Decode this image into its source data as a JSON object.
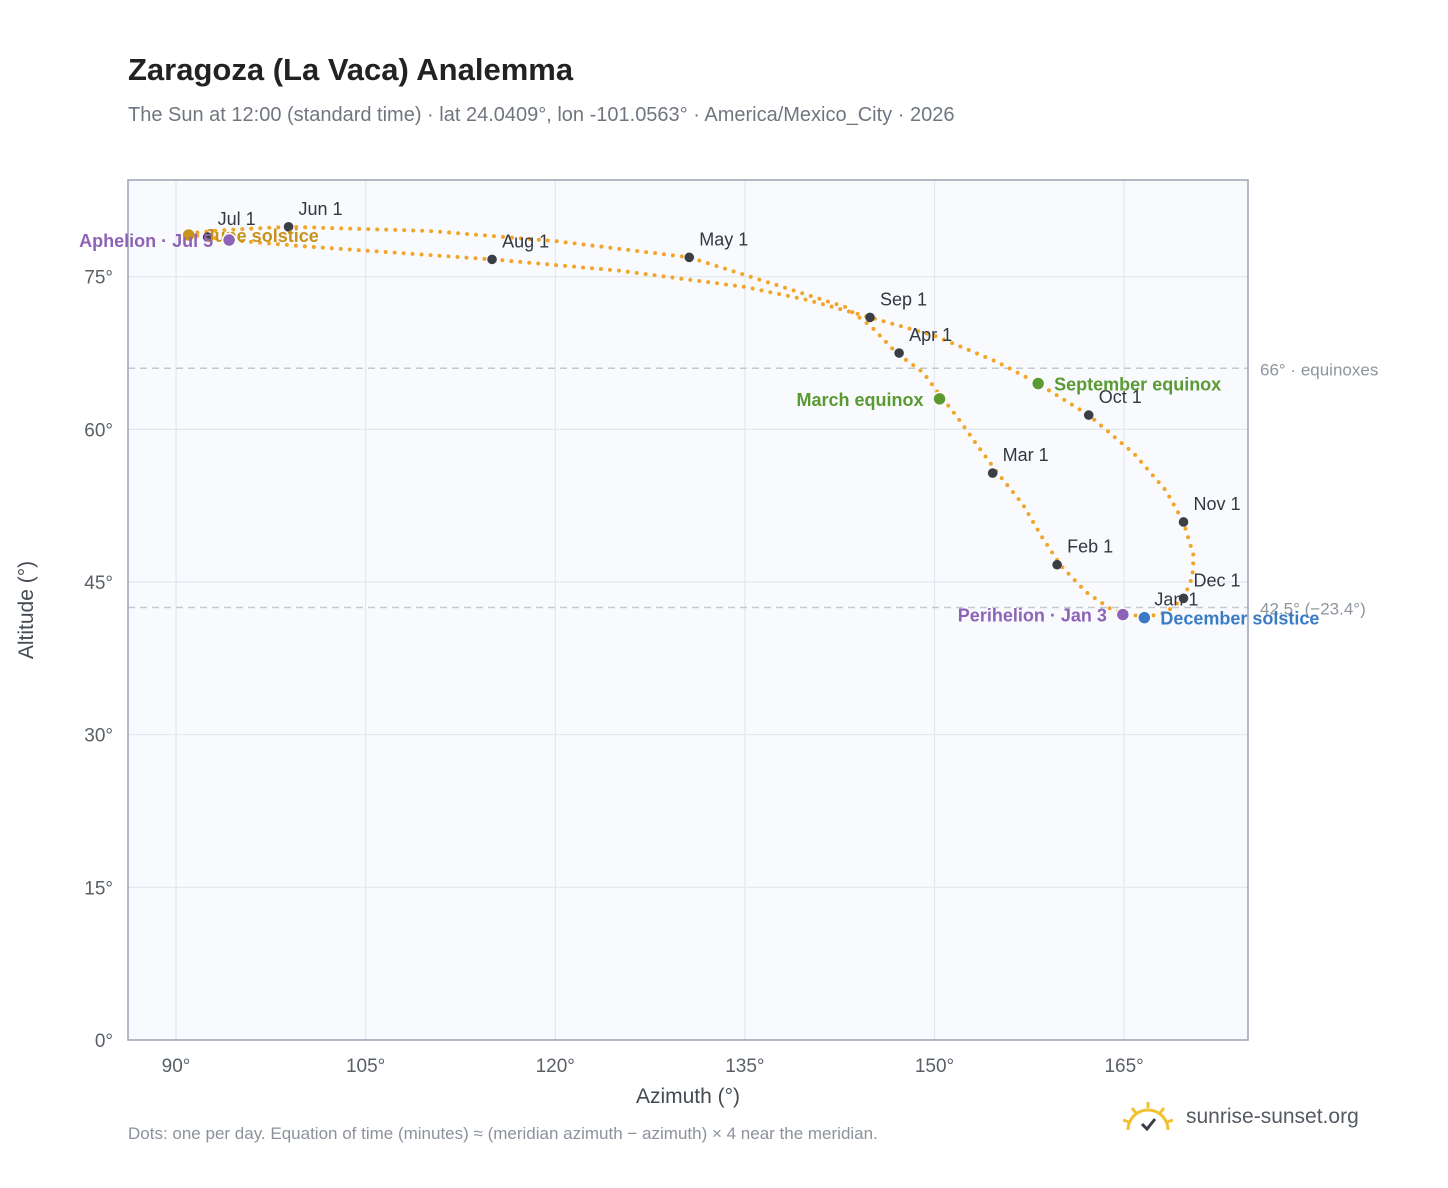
{
  "header": {
    "title": "Zaragoza (La Vaca) Analemma",
    "subtitle": "The Sun at 12:00 (standard time) · lat 24.0409°, lon -101.0563° · America/Mexico_City · 2026"
  },
  "footer": {
    "note": "Dots: one per day. Equation of time (minutes) ≈ (meridian azimuth − azimuth) × 4 near the meridian.",
    "brand": "sunrise-sunset.org",
    "brand_icon": "sun-logo-icon"
  },
  "colors": {
    "path": "#f2a52a",
    "month_dot": "#3a3f47",
    "equinox": "#5a9a32",
    "december_solstice": "#3a7cc4",
    "june_solstice": "#c9921a",
    "apsis": "#8c63b5",
    "plot_bg": "#f8fafd",
    "grid": "#e3e8ee",
    "frame": "#9aa3b2",
    "reference_line": "#c4c8cf"
  },
  "chart_data": {
    "type": "scatter",
    "xlabel": "Azimuth (°)",
    "ylabel": "Altitude (°)",
    "xlim": [
      86.2,
      174.8
    ],
    "ylim": [
      0,
      84.5
    ],
    "x_ticks": [
      90,
      105,
      120,
      135,
      150,
      165
    ],
    "x_tick_labels": [
      "90°",
      "105°",
      "120°",
      "135°",
      "150°",
      "165°"
    ],
    "y_ticks": [
      0,
      15,
      30,
      45,
      60,
      75
    ],
    "y_tick_labels": [
      "0°",
      "15°",
      "30°",
      "45°",
      "60°",
      "75°"
    ],
    "grid": true,
    "path_points_az_alt": [
      [
        166.6,
        41.5
      ],
      [
        164.0,
        42.3
      ],
      [
        162.0,
        44.0
      ],
      [
        160.0,
        46.6
      ],
      [
        158.5,
        49.4
      ],
      [
        157.0,
        52.6
      ],
      [
        155.0,
        55.7
      ],
      [
        153.4,
        58.4
      ],
      [
        151.8,
        61.2
      ],
      [
        150.4,
        63.4
      ],
      [
        149.1,
        65.6
      ],
      [
        147.0,
        67.5
      ],
      [
        145.0,
        70.1
      ],
      [
        143.0,
        72.0
      ],
      [
        130.6,
        76.9
      ],
      [
        120.0,
        78.5
      ],
      [
        110.0,
        79.5
      ],
      [
        98.9,
        79.9
      ],
      [
        94.0,
        79.6
      ],
      [
        91.3,
        79.3
      ],
      [
        91.0,
        79.1
      ],
      [
        92.5,
        78.9
      ],
      [
        94.2,
        78.6
      ],
      [
        100.0,
        78.0
      ],
      [
        115.0,
        76.7
      ],
      [
        125.0,
        75.6
      ],
      [
        135.0,
        74.0
      ],
      [
        140.0,
        72.7
      ],
      [
        144.9,
        71.0
      ],
      [
        150.0,
        69.2
      ],
      [
        155.0,
        66.6
      ],
      [
        158.2,
        64.5
      ],
      [
        162.2,
        61.4
      ],
      [
        165.8,
        57.6
      ],
      [
        168.3,
        54.0
      ],
      [
        169.7,
        50.9
      ],
      [
        170.5,
        47.6
      ],
      [
        170.4,
        45.5
      ],
      [
        169.7,
        43.4
      ],
      [
        168.3,
        42.0
      ],
      [
        166.6,
        41.5
      ]
    ],
    "month_markers": [
      {
        "label": "Jan 1",
        "az": 166.6,
        "alt": 41.5
      },
      {
        "label": "Feb 1",
        "az": 159.7,
        "alt": 46.7
      },
      {
        "label": "Mar 1",
        "az": 154.6,
        "alt": 55.7
      },
      {
        "label": "Apr 1",
        "az": 147.2,
        "alt": 67.5
      },
      {
        "label": "May 1",
        "az": 130.6,
        "alt": 76.9
      },
      {
        "label": "Jun 1",
        "az": 98.9,
        "alt": 79.9
      },
      {
        "label": "Jul 1",
        "az": 92.5,
        "alt": 78.9
      },
      {
        "label": "Aug 1",
        "az": 115.0,
        "alt": 76.7
      },
      {
        "label": "Sep 1",
        "az": 144.9,
        "alt": 71.0
      },
      {
        "label": "Oct 1",
        "az": 162.2,
        "alt": 61.4
      },
      {
        "label": "Nov 1",
        "az": 169.7,
        "alt": 50.9
      },
      {
        "label": "Dec 1",
        "az": 169.7,
        "alt": 43.4
      }
    ],
    "events": [
      {
        "label": "March equinox",
        "az": 150.4,
        "alt": 63.0,
        "color": "#5a9a32",
        "anchor": "left"
      },
      {
        "label": "September equinox",
        "az": 158.2,
        "alt": 64.5,
        "color": "#5a9a32",
        "anchor": "right"
      },
      {
        "label": "December solstice",
        "az": 166.6,
        "alt": 41.5,
        "color": "#3a7cc4",
        "anchor": "right"
      },
      {
        "label": "June solstice",
        "az": 91.0,
        "alt": 79.1,
        "color": "#c9921a",
        "anchor": "right"
      },
      {
        "label": "Perihelion · Jan 3",
        "az": 164.9,
        "alt": 41.8,
        "color": "#8c63b5",
        "anchor": "left"
      },
      {
        "label": "Aphelion · Jul 5",
        "az": 94.2,
        "alt": 78.6,
        "color": "#8c63b5",
        "anchor": "left"
      }
    ],
    "reference_lines": [
      {
        "alt": 66.0,
        "label": "66° · equinoxes"
      },
      {
        "alt": 42.5,
        "label": "42.5° (−23.4°)"
      }
    ]
  }
}
